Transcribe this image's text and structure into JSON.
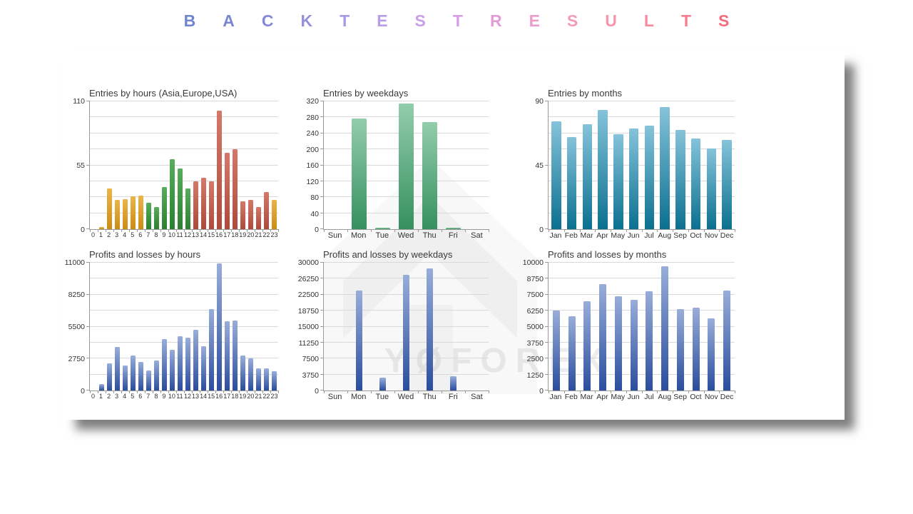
{
  "header": {
    "title": "BACKTEST RESULTS",
    "letters": [
      {
        "ch": "B",
        "color": "#6e86d2"
      },
      {
        "ch": "A",
        "color": "#7787d5"
      },
      {
        "ch": "C",
        "color": "#8488d9"
      },
      {
        "ch": "K",
        "color": "#9590dd"
      },
      {
        "ch": "T",
        "color": "#a79ae3"
      },
      {
        "ch": "E",
        "color": "#b89de8"
      },
      {
        "ch": "S",
        "color": "#c89fe9"
      },
      {
        "ch": "T",
        "color": "#d69ee4"
      },
      {
        "ch": "R",
        "color": "#e39cd8"
      },
      {
        "ch": "E",
        "color": "#ec9cca"
      },
      {
        "ch": "S",
        "color": "#f29bbb"
      },
      {
        "ch": "U",
        "color": "#f695ac"
      },
      {
        "ch": "L",
        "color": "#f88a9e"
      },
      {
        "ch": "T",
        "color": "#f77e90"
      },
      {
        "ch": "S",
        "color": "#f56b7e"
      }
    ]
  },
  "watermark": {
    "text": "YØFOREX"
  },
  "chart_data": [
    {
      "name": "entries-by-hours",
      "type": "bar",
      "title": "Entries by hours (Asia,Europe,USA)",
      "categories": [
        "0",
        "1",
        "2",
        "3",
        "4",
        "5",
        "6",
        "7",
        "8",
        "9",
        "10",
        "11",
        "12",
        "13",
        "14",
        "15",
        "16",
        "17",
        "18",
        "19",
        "20",
        "21",
        "22",
        "23"
      ],
      "values": [
        0,
        2,
        35,
        25,
        26,
        28,
        29,
        23,
        19,
        36,
        60,
        52,
        35,
        41,
        44,
        41,
        102,
        66,
        69,
        24,
        25,
        19,
        32,
        25
      ],
      "ylim": [
        0,
        110
      ],
      "yticks": [
        0,
        55,
        110
      ],
      "grid_divisions": 8,
      "bar_ratio": 0.62,
      "x_font": 9,
      "colors": {
        "mode": "groups",
        "groups": [
          "asia",
          "asia",
          "asia",
          "asia",
          "asia",
          "asia",
          "asia",
          "europe",
          "europe",
          "europe",
          "europe",
          "europe",
          "europe",
          "usa",
          "usa",
          "usa",
          "usa",
          "usa",
          "usa",
          "usa",
          "usa",
          "usa",
          "usa",
          "asia"
        ],
        "palette": {
          "asia": [
            "#eab54a",
            "#cd8c13"
          ],
          "europe": [
            "#57ad5b",
            "#2c8030"
          ],
          "usa": [
            "#d4796a",
            "#ad4a3c"
          ]
        }
      }
    },
    {
      "name": "entries-by-weekdays",
      "type": "bar",
      "title": "Entries by weekdays",
      "categories": [
        "Sun",
        "Mon",
        "Tue",
        "Wed",
        "Thu",
        "Fri",
        "Sat"
      ],
      "values": [
        0,
        278,
        4,
        315,
        268,
        3,
        0
      ],
      "ylim": [
        0,
        320
      ],
      "yticks": [
        0,
        40,
        80,
        120,
        160,
        200,
        240,
        280,
        320
      ],
      "grid_divisions": 8,
      "bar_ratio": 0.62,
      "x_font": 11,
      "colors": {
        "mode": "single",
        "top": "#93cdab",
        "bottom": "#35905f"
      }
    },
    {
      "name": "entries-by-months",
      "type": "bar",
      "title": "Entries by months",
      "categories": [
        "Jan",
        "Feb",
        "Mar",
        "Apr",
        "May",
        "Jun",
        "Jul",
        "Aug",
        "Sep",
        "Oct",
        "Nov",
        "Dec"
      ],
      "values": [
        76,
        65,
        74,
        84,
        67,
        71,
        73,
        86,
        70,
        64,
        57,
        63
      ],
      "ylim": [
        0,
        90
      ],
      "yticks": [
        0,
        45,
        90
      ],
      "grid_divisions": 8,
      "bar_ratio": 0.62,
      "x_font": 10.5,
      "colors": {
        "mode": "single",
        "top": "#85c3da",
        "bottom": "#0b7090"
      }
    },
    {
      "name": "profits-losses-by-hours",
      "type": "bar",
      "title": "Profits and losses by hours",
      "categories": [
        "0",
        "1",
        "2",
        "3",
        "4",
        "5",
        "6",
        "7",
        "8",
        "9",
        "10",
        "11",
        "12",
        "13",
        "14",
        "15",
        "16",
        "17",
        "18",
        "19",
        "20",
        "21",
        "22",
        "23"
      ],
      "values": [
        0,
        570,
        2350,
        3730,
        2160,
        3000,
        2450,
        1720,
        2560,
        4400,
        3520,
        4700,
        4550,
        5200,
        3810,
        7020,
        10940,
        5970,
        6030,
        3040,
        2770,
        1930,
        1890,
        1680
      ],
      "ylim": [
        0,
        11000
      ],
      "yticks": [
        0,
        2750,
        5500,
        8250,
        11000
      ],
      "grid_divisions": 8,
      "bar_ratio": 0.62,
      "x_font": 9,
      "colors": {
        "mode": "single",
        "top": "#98add9",
        "bottom": "#2b4d9d"
      }
    },
    {
      "name": "profits-losses-by-weekdays",
      "type": "bar",
      "title": "Profits and losses by weekdays",
      "categories": [
        "Sun",
        "Mon",
        "Tue",
        "Wed",
        "Thu",
        "Fri",
        "Sat"
      ],
      "values": [
        0,
        23400,
        3100,
        27200,
        28700,
        3400,
        0
      ],
      "ylim": [
        0,
        30000
      ],
      "yticks": [
        0,
        3750,
        7500,
        11250,
        15000,
        18750,
        22500,
        26250,
        30000
      ],
      "grid_divisions": 8,
      "bar_ratio": 0.28,
      "x_font": 11,
      "colors": {
        "mode": "single",
        "top": "#98add9",
        "bottom": "#2b4d9d"
      }
    },
    {
      "name": "profits-losses-by-months",
      "type": "bar",
      "title": "Profits and losses by months",
      "categories": [
        "Jan",
        "Feb",
        "Mar",
        "Apr",
        "May",
        "Jun",
        "Jul",
        "Aug",
        "Sep",
        "Oct",
        "Nov",
        "Dec"
      ],
      "values": [
        6270,
        5820,
        6980,
        8330,
        7360,
        7110,
        7780,
        9700,
        6390,
        6460,
        5670,
        7830
      ],
      "ylim": [
        0,
        10000
      ],
      "yticks": [
        0,
        1250,
        2500,
        3750,
        5000,
        6250,
        7500,
        8750,
        10000
      ],
      "grid_divisions": 8,
      "bar_ratio": 0.45,
      "x_font": 10.5,
      "colors": {
        "mode": "single",
        "top": "#98add9",
        "bottom": "#2b4d9d"
      }
    }
  ]
}
